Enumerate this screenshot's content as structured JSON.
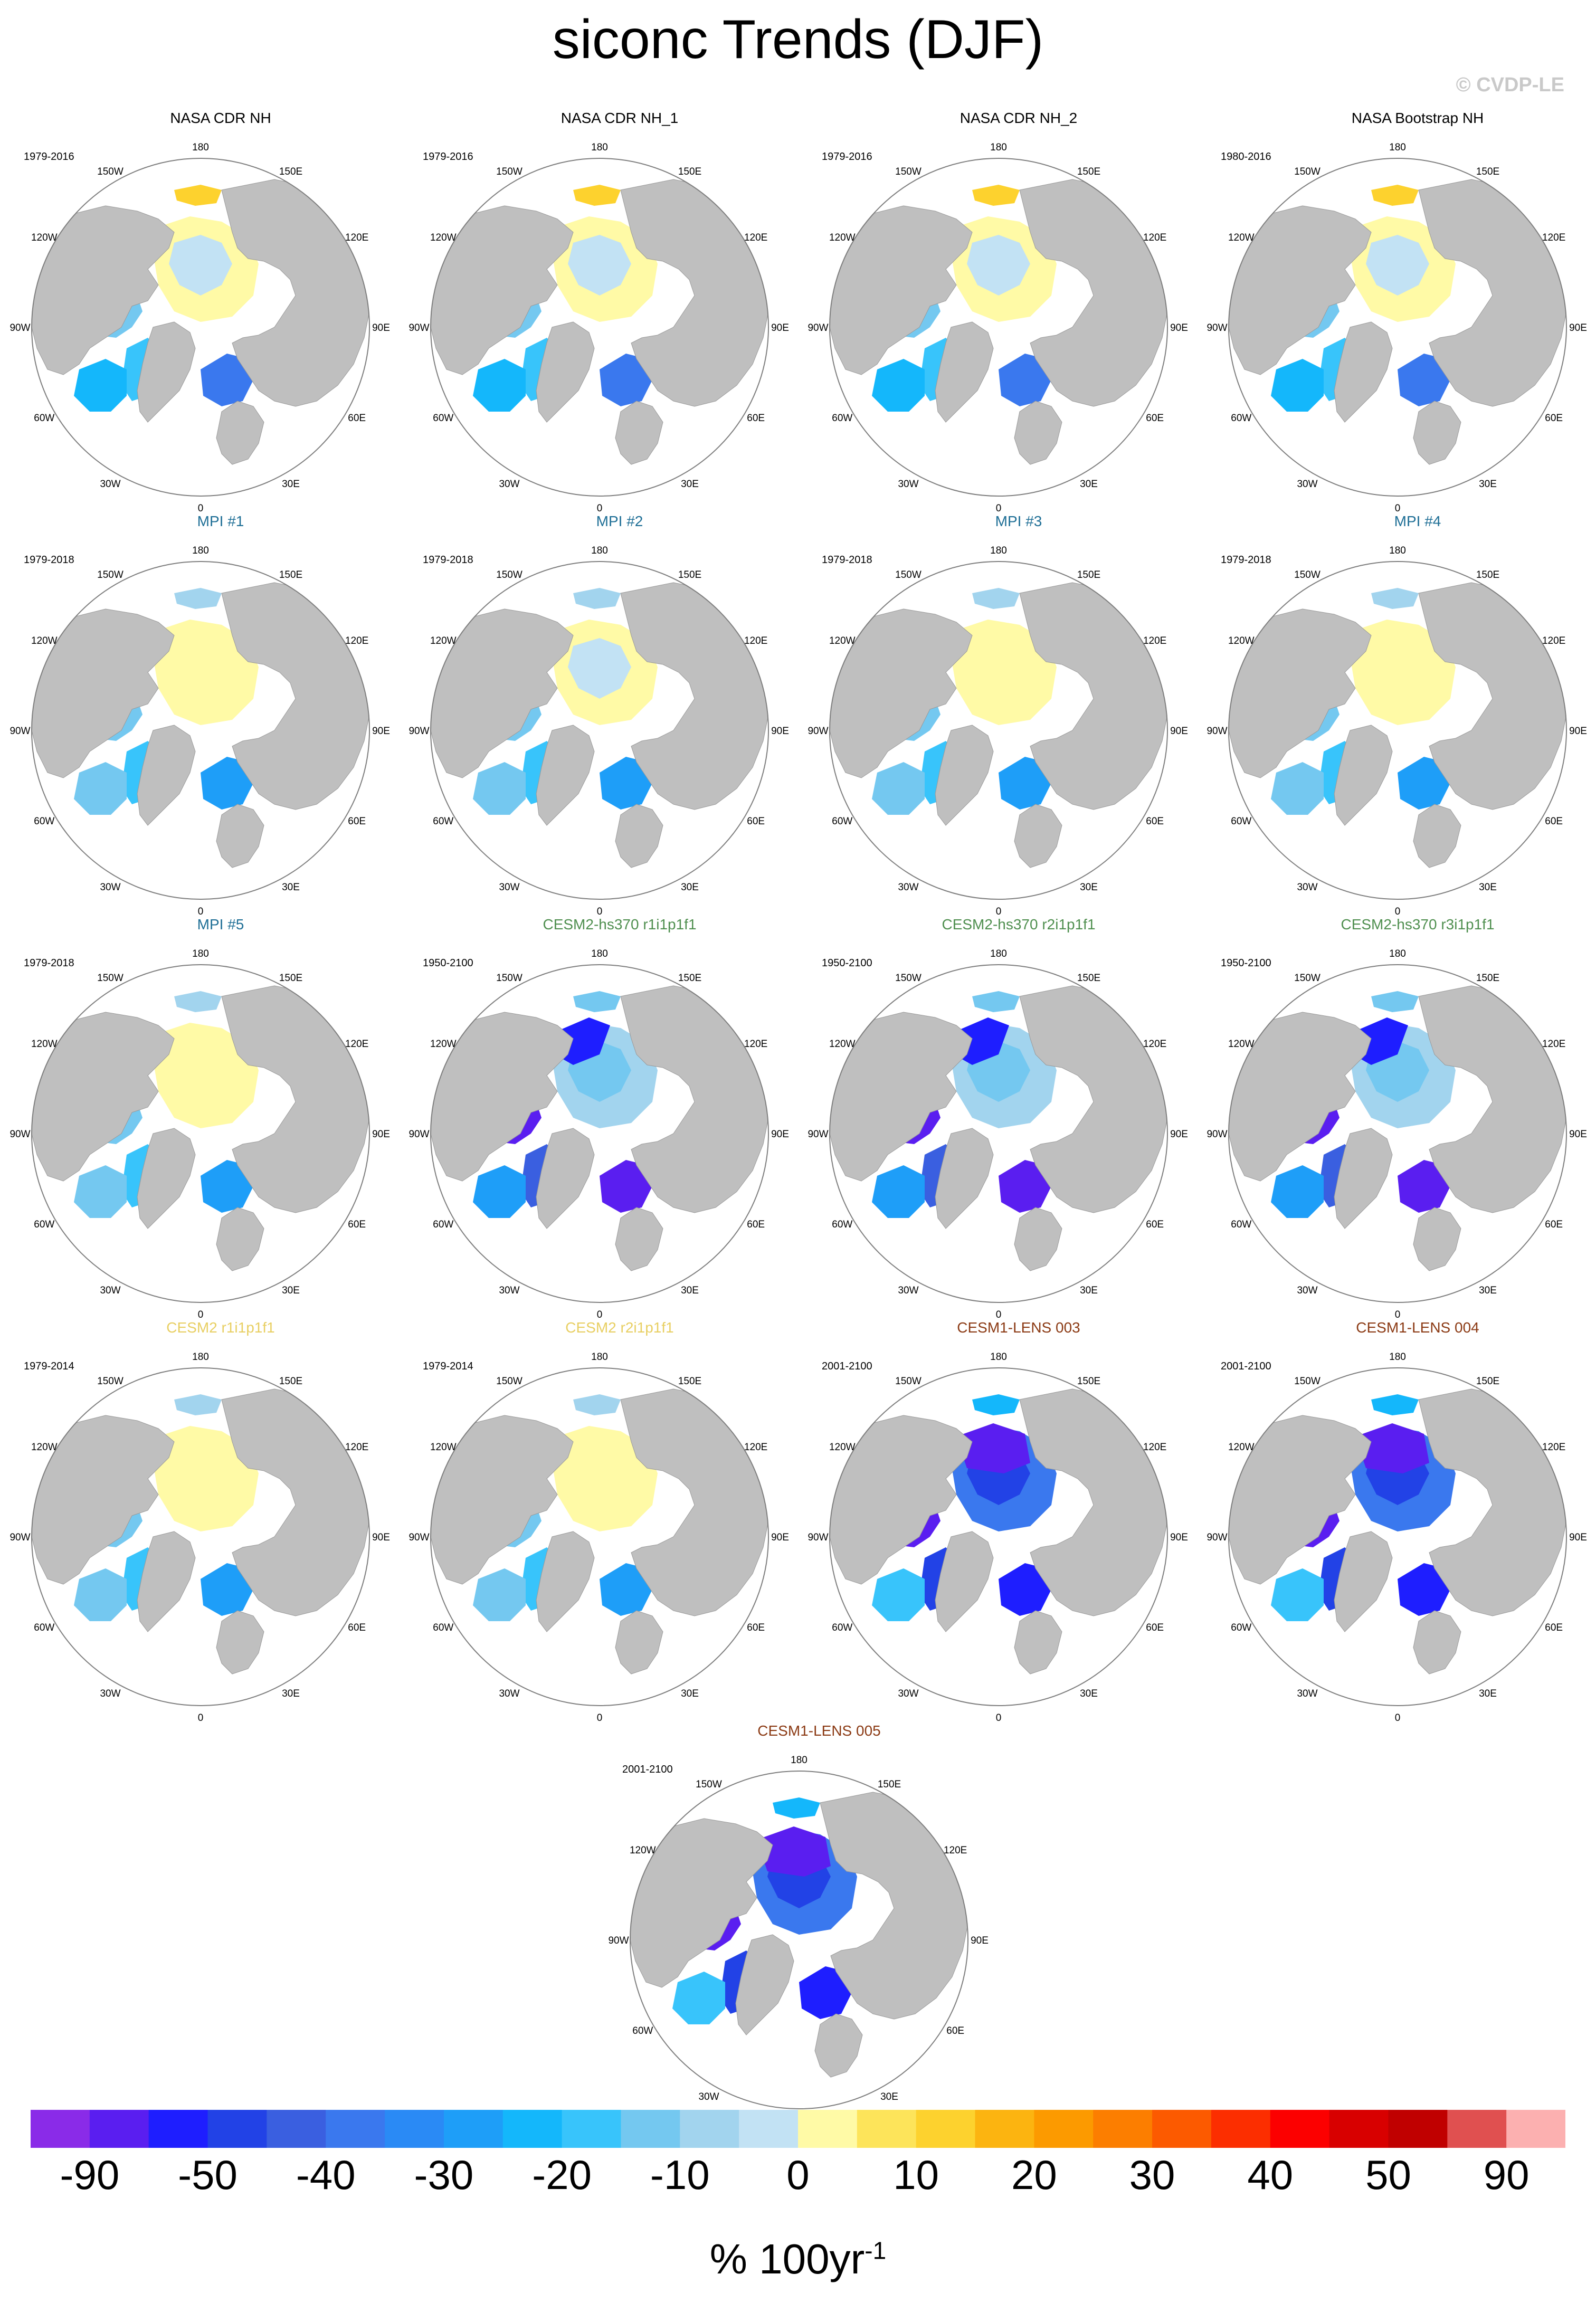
{
  "title": "siconc Trends (DJF)",
  "copyright": "© CVDP-LE",
  "colors": {
    "land": "#bfbfbf",
    "ocean": "#ffffff",
    "circle_outline": "#7f7f7f",
    "title_obs": "#000000",
    "title_mpi": "#1f6f96",
    "title_cesm2_hs370": "#4f8f4f",
    "title_cesm2": "#e8cf62",
    "title_cesm1_lens": "#8b3a14"
  },
  "longitude_labels": [
    "180",
    "150E",
    "120E",
    "90E",
    "60E",
    "30E",
    "0",
    "30W",
    "60W",
    "90W",
    "120W",
    "150W"
  ],
  "chart_data": {
    "type": "heatmap",
    "projection": "north-polar-stereographic",
    "variable": "siconc",
    "season": "DJF",
    "panels": [
      {
        "title": "NASA CDR NH",
        "period": "1979-2016",
        "group": "obs",
        "pattern": "obs",
        "weight": 0.55
      },
      {
        "title": "NASA CDR NH_1",
        "period": "1979-2016",
        "group": "obs",
        "pattern": "obs",
        "weight": 0.55
      },
      {
        "title": "NASA CDR NH_2",
        "period": "1979-2016",
        "group": "obs",
        "pattern": "obs",
        "weight": 0.55
      },
      {
        "title": "NASA Bootstrap NH",
        "period": "1980-2016",
        "group": "obs",
        "pattern": "obs",
        "weight": 0.5
      },
      {
        "title": "MPI #1",
        "period": "1979-2018",
        "group": "mpi",
        "pattern": "mpi",
        "weight": 0.45
      },
      {
        "title": "MPI #2",
        "period": "1979-2018",
        "group": "mpi",
        "pattern": "mpi",
        "weight": 0.5
      },
      {
        "title": "MPI #3",
        "period": "1979-2018",
        "group": "mpi",
        "pattern": "mpi",
        "weight": 0.35
      },
      {
        "title": "MPI #4",
        "period": "1979-2018",
        "group": "mpi",
        "pattern": "mpi",
        "weight": 0.45
      },
      {
        "title": "MPI #5",
        "period": "1979-2018",
        "group": "mpi",
        "pattern": "mpi",
        "weight": 0.45
      },
      {
        "title": "CESM2-hs370 r1i1p1f1",
        "period": "1950-2100",
        "group": "cesm2_hs370",
        "pattern": "strong",
        "weight": 0.85
      },
      {
        "title": "CESM2-hs370 r2i1p1f1",
        "period": "1950-2100",
        "group": "cesm2_hs370",
        "pattern": "strong",
        "weight": 0.8
      },
      {
        "title": "CESM2-hs370 r3i1p1f1",
        "period": "1950-2100",
        "group": "cesm2_hs370",
        "pattern": "strong",
        "weight": 0.8
      },
      {
        "title": "CESM2 r1i1p1f1",
        "period": "1979-2014",
        "group": "cesm2",
        "pattern": "mpi",
        "weight": 0.4
      },
      {
        "title": "CESM2 r2i1p1f1",
        "period": "1979-2014",
        "group": "cesm2",
        "pattern": "mpi",
        "weight": 0.35
      },
      {
        "title": "CESM1-LENS 003",
        "period": "2001-2100",
        "group": "cesm1_lens",
        "pattern": "lens",
        "weight": 1.0
      },
      {
        "title": "CESM1-LENS 004",
        "period": "2001-2100",
        "group": "cesm1_lens",
        "pattern": "lens",
        "weight": 1.0
      },
      {
        "title": "CESM1-LENS 005",
        "period": "2001-2100",
        "group": "cesm1_lens",
        "pattern": "lens",
        "weight": 0.95
      }
    ],
    "colorbar": {
      "levels": [
        "-90",
        "-50",
        "-40",
        "-30",
        "-20",
        "-10",
        "0",
        "10",
        "20",
        "30",
        "40",
        "50",
        "90"
      ],
      "units_base": "% 100yr",
      "units_exponent": "-1",
      "colors": [
        "#8a2be8",
        "#5a1ef0",
        "#1e1eff",
        "#2242e6",
        "#3a5fe0",
        "#3a78ee",
        "#2a8af5",
        "#1e9ef8",
        "#14b7fb",
        "#38c4fb",
        "#74c8f0",
        "#a2d4ee",
        "#c2e2f4",
        "#fffaa6",
        "#fde45a",
        "#fdd22e",
        "#fcb410",
        "#fc9a00",
        "#fc7e00",
        "#fc5a00",
        "#fc2e00",
        "#fc0000",
        "#d80000",
        "#c00000",
        "#e05050",
        "#fcb0b0"
      ]
    }
  }
}
